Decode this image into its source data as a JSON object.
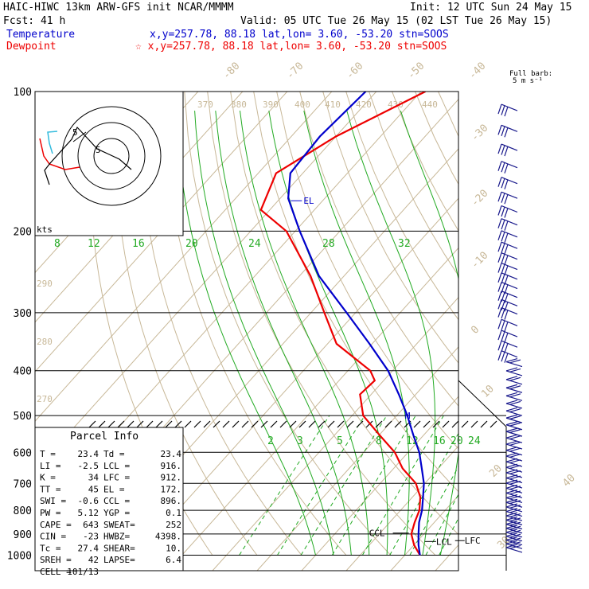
{
  "header": {
    "title": "HAIC-HIWC 13km ARW-GFS init   NCAR/MMMM",
    "init": "Init: 12 UTC Sun 24 May 15",
    "fcst": "Fcst:   41 h",
    "valid": "Valid: 05 UTC Tue 26 May 15 (02 LST Tue 26 May 15)",
    "temp_label": "Temperature",
    "temp_info": "x,y=257.78, 88.18   lat,lon=  3.60, -53.20  stn=SOOS",
    "dew_label": "Dewpoint",
    "dew_info": "☆ x,y=257.78, 88.18   lat,lon=  3.60, -53.20  stn=SOOS",
    "barb_label": "Full barb:",
    "barb_unit": "5 m s⁻¹"
  },
  "colors": {
    "temperature": "#0000cc",
    "dewpoint": "#ee0000",
    "isotherm": "#c8b898",
    "mixing_ratio": "#22aa22",
    "barb": "#1a1a8c"
  },
  "chart_data": {
    "type": "skew-t",
    "pressure_levels": [
      "100",
      "200",
      "300",
      "400",
      "500",
      "600",
      "700",
      "800",
      "900",
      "1000"
    ],
    "isotherm_labels": [
      "-80",
      "-70",
      "-60",
      "-50",
      "-40",
      "-30",
      "-20",
      "-10",
      "0",
      "10",
      "20",
      "30",
      "40"
    ],
    "theta_labels": [
      "370",
      "380",
      "390",
      "400",
      "410",
      "420",
      "430",
      "440",
      "290",
      "280",
      "270"
    ],
    "mixing_ratio_labels_top": [
      "8",
      "12",
      "16",
      "20",
      "24",
      "28",
      "32"
    ],
    "mixing_ratio_labels_mid": [
      "2",
      "3",
      "5",
      "8",
      "12",
      "16",
      "20",
      "24"
    ],
    "temperature_profile": [
      {
        "p": 1000,
        "t": 23.4
      },
      {
        "p": 950,
        "t": 21.0
      },
      {
        "p": 900,
        "t": 18.8
      },
      {
        "p": 850,
        "t": 16.6
      },
      {
        "p": 800,
        "t": 14.8
      },
      {
        "p": 750,
        "t": 12.4
      },
      {
        "p": 700,
        "t": 9.8
      },
      {
        "p": 650,
        "t": 6.3
      },
      {
        "p": 600,
        "t": 2.5
      },
      {
        "p": 550,
        "t": -2.4
      },
      {
        "p": 500,
        "t": -7.6
      },
      {
        "p": 450,
        "t": -13.8
      },
      {
        "p": 400,
        "t": -21.0
      },
      {
        "p": 350,
        "t": -30.6
      },
      {
        "p": 300,
        "t": -42.0
      },
      {
        "p": 250,
        "t": -55.6
      },
      {
        "p": 200,
        "t": -69.0
      },
      {
        "p": 170,
        "t": -78.2
      },
      {
        "p": 150,
        "t": -82.8
      },
      {
        "p": 125,
        "t": -83.6
      },
      {
        "p": 100,
        "t": -82.4
      }
    ],
    "dewpoint_profile": [
      {
        "p": 1000,
        "t": 23.4
      },
      {
        "p": 950,
        "t": 20.0
      },
      {
        "p": 900,
        "t": 17.2
      },
      {
        "p": 850,
        "t": 15.6
      },
      {
        "p": 800,
        "t": 14.2
      },
      {
        "p": 750,
        "t": 11.8
      },
      {
        "p": 700,
        "t": 8.0
      },
      {
        "p": 650,
        "t": 2.0
      },
      {
        "p": 600,
        "t": -3.0
      },
      {
        "p": 550,
        "t": -10.0
      },
      {
        "p": 500,
        "t": -17.5
      },
      {
        "p": 450,
        "t": -22.5
      },
      {
        "p": 420,
        "t": -22.0
      },
      {
        "p": 400,
        "t": -25.0
      },
      {
        "p": 350,
        "t": -38.0
      },
      {
        "p": 300,
        "t": -47.0
      },
      {
        "p": 250,
        "t": -57.5
      },
      {
        "p": 200,
        "t": -72.0
      },
      {
        "p": 180,
        "t": -82.0
      },
      {
        "p": 150,
        "t": -86.0
      },
      {
        "p": 125,
        "t": -80.0
      },
      {
        "p": 100,
        "t": -69.0
      }
    ],
    "level_marks": [
      {
        "label": "EL",
        "p": 172,
        "t": -77.5
      },
      {
        "label": "M",
        "p": 500,
        "t": -7.6
      },
      {
        "label": "CCL",
        "p": 896,
        "t": 16.8
      },
      {
        "label": "LCL",
        "p": 916,
        "t": 20.6
      },
      {
        "label": "LFC",
        "p": 912,
        "t": 20.4
      }
    ]
  },
  "hodograph": {
    "label": "kts",
    "ring_labels": [
      "5",
      "5"
    ]
  },
  "parcel_info": {
    "title": "Parcel Info",
    "rows": [
      [
        "T  =",
        "23.4",
        "Td =",
        "23.4"
      ],
      [
        "LI =",
        "-2.5",
        "LCL =",
        "916."
      ],
      [
        "K  =",
        "34",
        "LFC =",
        "912."
      ],
      [
        "TT =",
        "45",
        "EL  =",
        "172."
      ],
      [
        "SWI =",
        "-0.6",
        "CCL =",
        "896."
      ],
      [
        "PW =",
        "5.12",
        "YGP =",
        "0.1"
      ],
      [
        "CAPE =",
        "643",
        "SWEAT=",
        "252"
      ],
      [
        "CIN =",
        "-23",
        "HWBZ=",
        "4398."
      ],
      [
        "Tc =",
        "27.4",
        "SHEAR=",
        "10."
      ],
      [
        "SREH =",
        "42",
        "LAPSE=",
        "6.4"
      ],
      [
        "CELL =",
        "101/13",
        "",
        ""
      ]
    ]
  }
}
